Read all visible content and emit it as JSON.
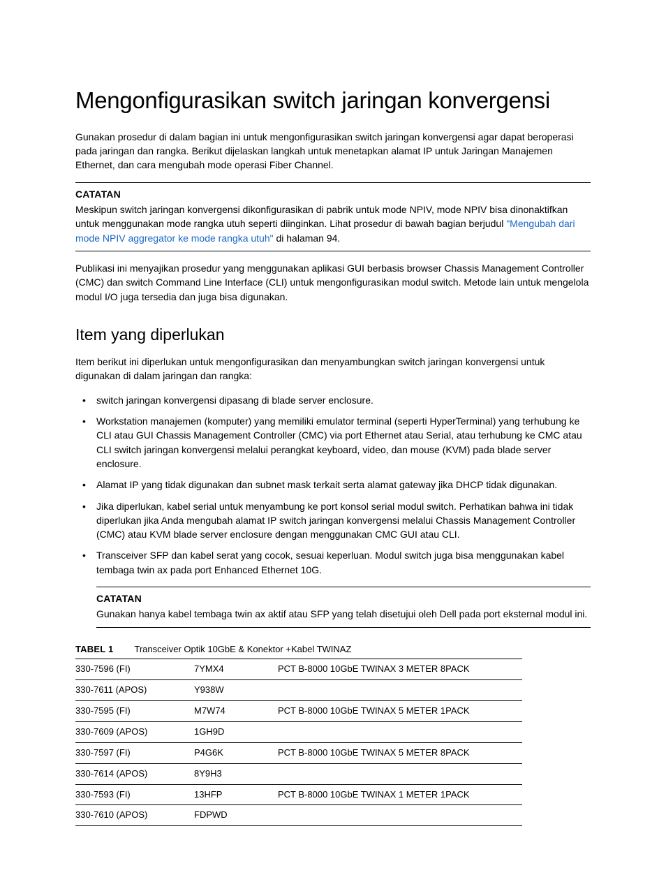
{
  "title": "Mengonfigurasikan switch jaringan konvergensi",
  "intro": "Gunakan prosedur di dalam bagian ini untuk mengonfigurasikan switch jaringan konvergensi agar dapat beroperasi pada jaringan dan rangka. Berikut dijelaskan langkah untuk menetapkan alamat IP untuk Jaringan Manajemen Ethernet, dan cara mengubah mode operasi Fiber Channel.",
  "note1": {
    "label": "CATATAN",
    "text_before_link": "Meskipun switch jaringan konvergensi dikonfigurasikan di pabrik untuk mode NPIV, mode NPIV bisa dinonaktifkan untuk menggunakan mode rangka utuh seperti diinginkan. Lihat prosedur di bawah bagian berjudul ",
    "link_text": "\"Mengubah dari mode NPIV aggregator ke mode rangka utuh\"",
    "text_after_link": " di halaman 94."
  },
  "para2": "Publikasi ini menyajikan prosedur yang menggunakan aplikasi GUI berbasis browser Chassis Management Controller (CMC) dan switch Command Line Interface (CLI) untuk mengonfigurasikan modul switch. Metode lain untuk mengelola modul I/O juga tersedia dan juga bisa digunakan.",
  "section2_title": "Item yang diperlukan",
  "section2_intro": "Item berikut ini diperlukan untuk mengonfigurasikan dan menyambungkan switch jaringan konvergensi untuk digunakan di dalam jaringan dan rangka:",
  "bullets": [
    "switch jaringan konvergensi dipasang di blade server enclosure.",
    "Workstation manajemen (komputer) yang memiliki emulator terminal (seperti HyperTerminal) yang terhubung ke CLI atau GUI Chassis Management Controller (CMC) via port Ethernet atau Serial, atau terhubung ke CMC atau CLI switch jaringan konvergensi melalui perangkat keyboard, video, dan mouse (KVM) pada blade server enclosure.",
    "Alamat IP yang tidak digunakan dan subnet mask terkait serta alamat gateway jika DHCP tidak digunakan.",
    "Jika diperlukan, kabel serial untuk menyambung ke port konsol serial modul switch. Perhatikan bahwa ini tidak diperlukan jika Anda mengubah alamat IP switch jaringan konvergensi melalui Chassis Management Controller (CMC) atau KVM blade server enclosure dengan menggunakan CMC GUI atau CLI.",
    "Transceiver SFP dan kabel serat yang cocok, sesuai keperluan. Modul switch juga bisa menggunakan kabel tembaga twin ax pada port Enhanced Ethernet 10G."
  ],
  "note2": {
    "label": "CATATAN",
    "text": "Gunakan hanya kabel tembaga twin ax aktif atau SFP yang telah disetujui oleh Dell pada port eksternal modul ini."
  },
  "table": {
    "label": "TABEL 1",
    "caption": "Transceiver Optik 10GbE & Konektor +Kabel TWINAZ",
    "rows": [
      {
        "c1": "330-7596 (FI)",
        "c2": "7YMX4",
        "c3": "PCT B-8000 10GbE TWINAX 3 METER 8PACK"
      },
      {
        "c1": "330-7611 (APOS)",
        "c2": "Y938W",
        "c3": ""
      },
      {
        "c1": "330-7595 (FI)",
        "c2": "M7W74",
        "c3": "PCT B-8000 10GbE TWINAX 5 METER 1PACK"
      },
      {
        "c1": "330-7609 (APOS)",
        "c2": "1GH9D",
        "c3": ""
      },
      {
        "c1": "330-7597 (FI)",
        "c2": "P4G6K",
        "c3": "PCT B-8000 10GbE TWINAX 5 METER 8PACK"
      },
      {
        "c1": "330-7614 (APOS)",
        "c2": "8Y9H3",
        "c3": ""
      },
      {
        "c1": "330-7593 (FI)",
        "c2": "13HFP",
        "c3": "PCT B-8000 10GbE TWINAX 1 METER 1PACK"
      },
      {
        "c1": "330-7610 (APOS)",
        "c2": "FDPWD",
        "c3": ""
      }
    ]
  },
  "colors": {
    "text": "#000000",
    "link": "#1a66c9",
    "background": "#ffffff"
  }
}
